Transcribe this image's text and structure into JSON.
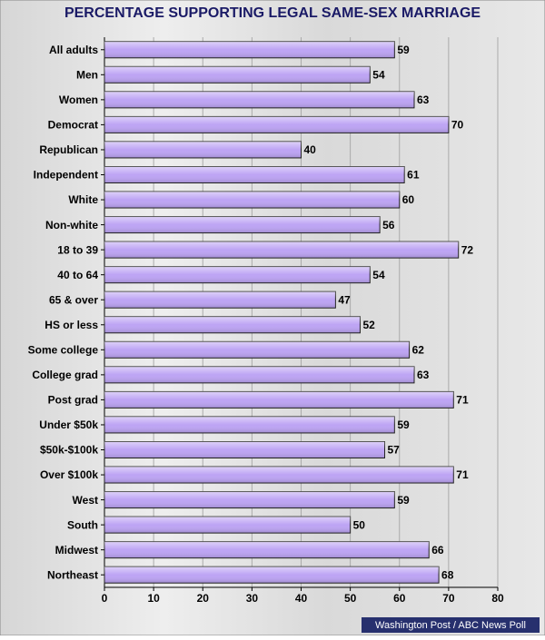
{
  "chart_data": {
    "type": "bar",
    "orientation": "horizontal",
    "title": "PERCENTAGE SUPPORTING LEGAL SAME-SEX MARRIAGE",
    "categories": [
      "All adults",
      "Men",
      "Women",
      "Democrat",
      "Republican",
      "Independent",
      "White",
      "Non-white",
      "18 to 39",
      "40 to 64",
      "65 & over",
      "HS or less",
      "Some college",
      "College grad",
      "Post grad",
      "Under $50k",
      "$50k-$100k",
      "Over $100k",
      "West",
      "South",
      "Midwest",
      "Northeast"
    ],
    "values": [
      59,
      54,
      63,
      70,
      40,
      61,
      60,
      56,
      72,
      54,
      47,
      52,
      62,
      63,
      71,
      59,
      57,
      71,
      59,
      50,
      66,
      68
    ],
    "color": "#bda4f4",
    "xlim": [
      0,
      80
    ],
    "xticks": [
      0,
      10,
      20,
      30,
      40,
      50,
      60,
      70,
      80
    ],
    "grid": true,
    "source": "Washington Post / ABC News Poll"
  }
}
